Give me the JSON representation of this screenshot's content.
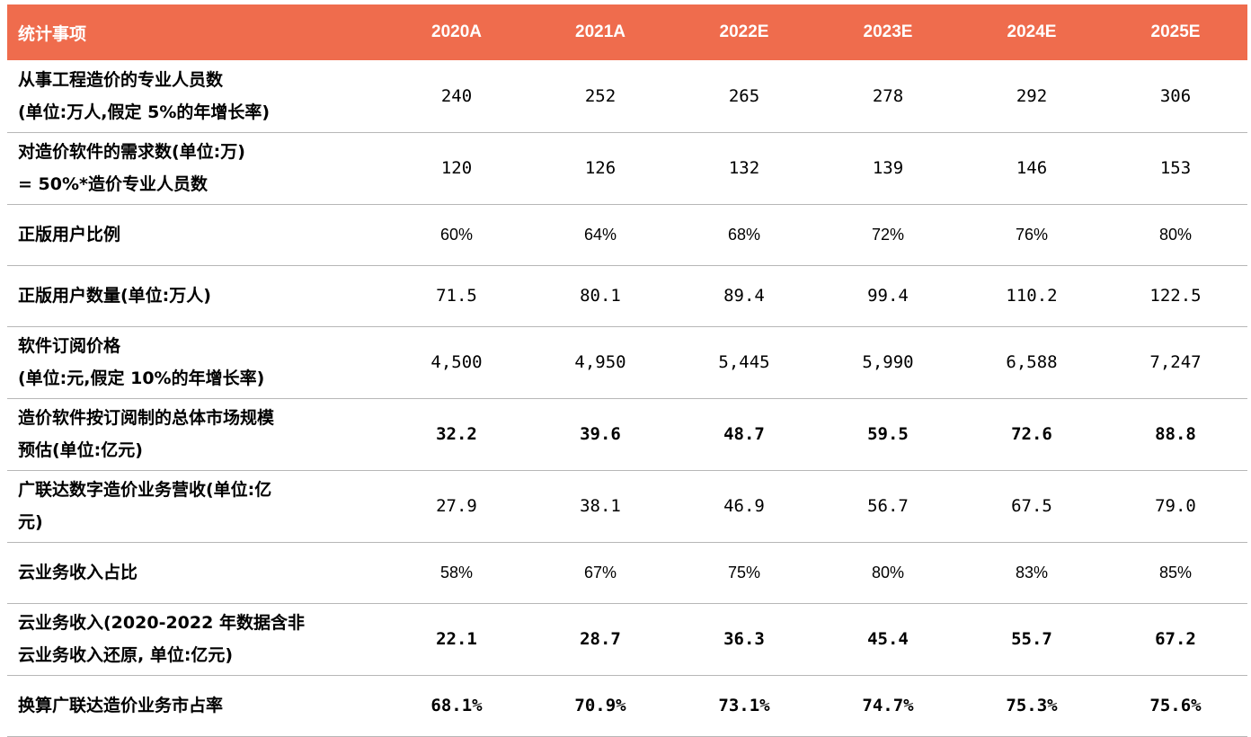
{
  "table": {
    "header": {
      "label": "统计事项",
      "years": [
        "2020A",
        "2021A",
        "2022E",
        "2023E",
        "2024E",
        "2025E"
      ]
    },
    "rows": [
      {
        "label_lines": [
          "从事工程造价的专业人员数",
          "(单位:万人,假定 5%的年增长率)"
        ],
        "values": [
          "240",
          "252",
          "265",
          "278",
          "292",
          "306"
        ]
      },
      {
        "label_lines": [
          "对造价软件的需求数(单位:万)",
          "= 50%*造价专业人员数"
        ],
        "values": [
          "120",
          "126",
          "132",
          "139",
          "146",
          "153"
        ]
      },
      {
        "label_lines": [
          "正版用户比例"
        ],
        "values": [
          "60%",
          "64%",
          "68%",
          "72%",
          "76%",
          "80%"
        ]
      },
      {
        "label_lines": [
          "正版用户数量(单位:万人)"
        ],
        "values": [
          "71.5",
          "80.1",
          "89.4",
          "99.4",
          "110.2",
          "122.5"
        ]
      },
      {
        "label_lines": [
          "软件订阅价格",
          "(单位:元,假定 10%的年增长率)"
        ],
        "values": [
          "4,500",
          "4,950",
          "5,445",
          "5,990",
          "6,588",
          "7,247"
        ]
      },
      {
        "label_lines": [
          "造价软件按订阅制的总体市场规模",
          "预估(单位:亿元)"
        ],
        "values": [
          "32.2",
          "39.6",
          "48.7",
          "59.5",
          "72.6",
          "88.8"
        ]
      },
      {
        "label_lines": [
          "广联达数字造价业务营收(单位:亿",
          "元)"
        ],
        "values": [
          "27.9",
          "38.1",
          "46.9",
          "56.7",
          "67.5",
          "79.0"
        ]
      },
      {
        "label_lines": [
          "云业务收入占比"
        ],
        "values": [
          "58%",
          "67%",
          "75%",
          "80%",
          "83%",
          "85%"
        ]
      },
      {
        "label_lines": [
          "云业务收入(2020-2022 年数据含非",
          "云业务收入还原, 单位:亿元)"
        ],
        "values": [
          "22.1",
          "28.7",
          "36.3",
          "45.4",
          "55.7",
          "67.2"
        ]
      },
      {
        "label_lines": [
          "换算广联达造价业务市占率"
        ],
        "values": [
          "68.1%",
          "70.9%",
          "73.1%",
          "74.7%",
          "75.3%",
          "75.6%"
        ]
      }
    ]
  }
}
